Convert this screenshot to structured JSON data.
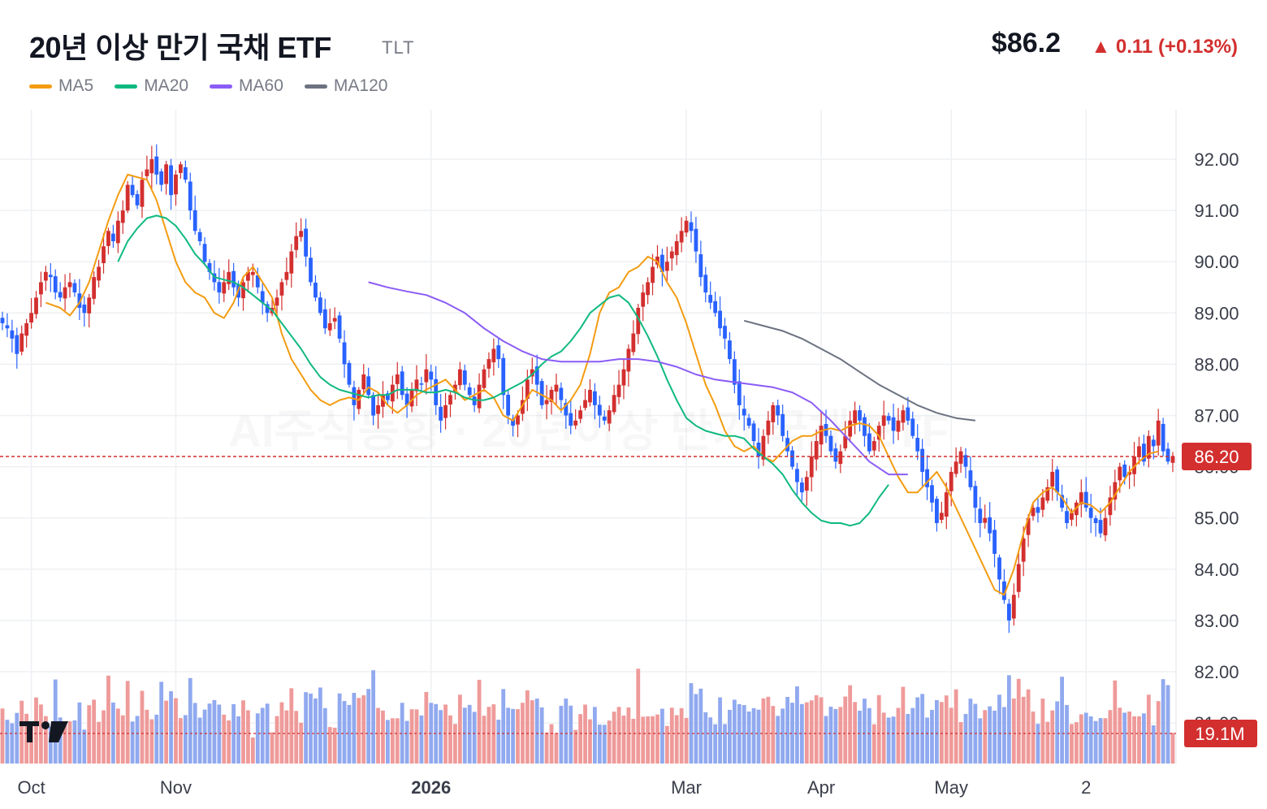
{
  "header": {
    "title": "20년 이상 만기 국채 ETF",
    "ticker": "TLT",
    "price": "$86.2",
    "change": "▲ 0.11 (+0.13%)"
  },
  "legend": [
    {
      "label": "MA5",
      "color": "#f39c12"
    },
    {
      "label": "MA20",
      "color": "#10b981"
    },
    {
      "label": "MA60",
      "color": "#8b5cf6"
    },
    {
      "label": "MA120",
      "color": "#6b7280"
    }
  ],
  "watermark": "AI주식동향 · 20년이상 만기 국채 ETF",
  "colors": {
    "up": "#d32f2f",
    "down": "#2962ff",
    "up_volume": "#ef9a9a",
    "down_volume": "#90a9ef",
    "price_tag": "#d32f2f"
  },
  "chart_data": {
    "type": "candlestick",
    "y_ticks": [
      "92.00",
      "91.00",
      "90.00",
      "89.00",
      "88.00",
      "87.00",
      "86.00",
      "85.00",
      "84.00",
      "83.00",
      "82.00",
      "81.00"
    ],
    "ylim": [
      80.5,
      93.0
    ],
    "x_ticks": [
      {
        "label": "Oct",
        "index": 6,
        "bold": false
      },
      {
        "label": "Nov",
        "index": 36,
        "bold": false
      },
      {
        "label": "2026",
        "index": 89,
        "bold": true
      },
      {
        "label": "Mar",
        "index": 142,
        "bold": false
      },
      {
        "label": "Apr",
        "index": 170,
        "bold": false
      },
      {
        "label": "May",
        "index": 197,
        "bold": false
      },
      {
        "label": "2",
        "index": 225,
        "bold": false
      }
    ],
    "last_price_label": "86.20",
    "last_price": 86.2,
    "last_volume_label": "19.1M",
    "last_volume": 19.1,
    "closes": [
      88.8,
      88.7,
      88.5,
      88.2,
      88.6,
      88.8,
      89.0,
      89.3,
      89.6,
      89.8,
      89.7,
      89.4,
      89.3,
      89.5,
      89.6,
      89.4,
      89.1,
      89.0,
      89.3,
      89.7,
      89.9,
      90.3,
      90.6,
      90.4,
      90.8,
      91.0,
      91.5,
      91.3,
      91.1,
      91.6,
      91.8,
      92.0,
      91.7,
      91.5,
      91.9,
      91.3,
      91.7,
      91.9,
      91.6,
      91.0,
      90.6,
      90.4,
      90.0,
      89.8,
      89.6,
      89.4,
      89.6,
      89.8,
      89.5,
      89.3,
      89.6,
      89.8,
      89.8,
      89.5,
      89.2,
      89.0,
      89.1,
      89.3,
      89.6,
      89.8,
      90.2,
      90.5,
      90.6,
      90.1,
      89.6,
      89.3,
      89.0,
      88.7,
      88.8,
      88.9,
      88.5,
      88.0,
      87.6,
      87.2,
      87.5,
      87.8,
      87.4,
      87.0,
      87.2,
      87.4,
      87.3,
      87.6,
      87.8,
      87.4,
      87.2,
      87.5,
      87.7,
      87.6,
      87.9,
      87.7,
      87.2,
      86.9,
      87.2,
      87.4,
      87.6,
      87.9,
      87.6,
      87.4,
      87.2,
      87.6,
      87.9,
      88.1,
      88.3,
      88.1,
      87.4,
      87.0,
      86.8,
      87.0,
      87.3,
      87.7,
      87.9,
      87.6,
      87.2,
      87.3,
      87.5,
      87.6,
      87.3,
      87.0,
      86.8,
      86.9,
      87.1,
      87.3,
      87.5,
      87.2,
      87.0,
      86.9,
      87.1,
      87.4,
      87.6,
      87.9,
      88.3,
      88.6,
      89.1,
      89.4,
      89.6,
      89.9,
      90.1,
      89.8,
      90.0,
      90.2,
      90.4,
      90.6,
      90.8,
      90.6,
      90.2,
      89.7,
      89.4,
      89.2,
      89.0,
      88.7,
      88.5,
      88.1,
      87.6,
      87.2,
      87.0,
      86.8,
      86.5,
      86.2,
      86.6,
      86.9,
      87.2,
      87.0,
      86.6,
      86.3,
      86.0,
      85.7,
      85.5,
      85.8,
      86.2,
      86.5,
      86.8,
      86.6,
      86.3,
      86.1,
      86.3,
      86.6,
      86.9,
      87.1,
      86.9,
      86.6,
      86.3,
      86.5,
      86.8,
      87.0,
      86.9,
      86.7,
      86.9,
      87.1,
      86.9,
      86.6,
      86.3,
      85.9,
      85.6,
      85.3,
      84.9,
      85.1,
      85.5,
      85.9,
      86.1,
      86.3,
      86.0,
      85.6,
      85.2,
      84.9,
      85.0,
      84.7,
      84.3,
      83.8,
      83.4,
      83.0,
      83.5,
      84.1,
      84.6,
      85.0,
      85.2,
      85.1,
      85.4,
      85.6,
      85.9,
      85.5,
      85.2,
      84.9,
      85.1,
      85.3,
      85.5,
      85.2,
      85.0,
      84.9,
      84.7,
      85.0,
      85.4,
      85.7,
      86.0,
      85.8,
      85.9,
      86.2,
      86.4,
      86.1,
      86.6,
      86.4,
      86.9,
      86.3,
      86.1,
      86.2
    ],
    "series": [
      {
        "name": "MA5",
        "color": "#f39c12",
        "values": [
          [
            9,
            89.2
          ],
          [
            12,
            89.1
          ],
          [
            14,
            88.95
          ],
          [
            16,
            89.2
          ],
          [
            18,
            89.6
          ],
          [
            20,
            90.2
          ],
          [
            22,
            90.8
          ],
          [
            24,
            91.3
          ],
          [
            26,
            91.7
          ],
          [
            28,
            91.65
          ],
          [
            30,
            91.6
          ],
          [
            32,
            91.2
          ],
          [
            34,
            90.6
          ],
          [
            36,
            90.0
          ],
          [
            38,
            89.6
          ],
          [
            40,
            89.4
          ],
          [
            42,
            89.3
          ],
          [
            44,
            89.0
          ],
          [
            46,
            88.9
          ],
          [
            48,
            89.2
          ],
          [
            50,
            89.7
          ],
          [
            52,
            89.9
          ],
          [
            54,
            89.6
          ],
          [
            56,
            89.3
          ],
          [
            58,
            88.6
          ],
          [
            60,
            88.1
          ],
          [
            62,
            87.8
          ],
          [
            64,
            87.5
          ],
          [
            66,
            87.3
          ],
          [
            68,
            87.2
          ],
          [
            70,
            87.3
          ],
          [
            72,
            87.35
          ],
          [
            74,
            87.3
          ],
          [
            76,
            87.55
          ],
          [
            78,
            87.45
          ],
          [
            80,
            87.2
          ],
          [
            82,
            87.05
          ],
          [
            84,
            87.2
          ],
          [
            86,
            87.4
          ],
          [
            88,
            87.5
          ],
          [
            90,
            87.6
          ],
          [
            92,
            87.7
          ],
          [
            94,
            87.5
          ],
          [
            96,
            87.3
          ],
          [
            98,
            87.4
          ],
          [
            100,
            87.5
          ],
          [
            102,
            87.35
          ],
          [
            104,
            87.0
          ],
          [
            106,
            86.9
          ],
          [
            108,
            87.2
          ],
          [
            110,
            87.5
          ],
          [
            112,
            87.4
          ],
          [
            114,
            87.3
          ],
          [
            116,
            87.1
          ],
          [
            118,
            87.3
          ],
          [
            120,
            87.6
          ],
          [
            122,
            88.2
          ],
          [
            124,
            89.0
          ],
          [
            126,
            89.4
          ],
          [
            128,
            89.5
          ],
          [
            130,
            89.8
          ],
          [
            132,
            89.9
          ],
          [
            134,
            90.1
          ],
          [
            136,
            90.0
          ],
          [
            138,
            89.6
          ],
          [
            140,
            89.3
          ],
          [
            142,
            88.8
          ],
          [
            144,
            88.2
          ],
          [
            146,
            87.6
          ],
          [
            148,
            87.2
          ],
          [
            150,
            86.7
          ],
          [
            152,
            86.4
          ],
          [
            154,
            86.3
          ],
          [
            156,
            86.4
          ],
          [
            158,
            86.2
          ],
          [
            160,
            86.1
          ],
          [
            162,
            86.3
          ],
          [
            164,
            86.5
          ],
          [
            166,
            86.6
          ],
          [
            168,
            86.6
          ],
          [
            170,
            86.7
          ],
          [
            172,
            86.75
          ],
          [
            174,
            86.7
          ],
          [
            176,
            86.8
          ],
          [
            178,
            86.85
          ],
          [
            180,
            86.8
          ],
          [
            182,
            86.6
          ],
          [
            184,
            86.2
          ],
          [
            186,
            85.8
          ],
          [
            188,
            85.5
          ],
          [
            190,
            85.5
          ],
          [
            192,
            85.7
          ],
          [
            194,
            85.9
          ],
          [
            196,
            85.6
          ],
          [
            198,
            85.2
          ],
          [
            200,
            84.8
          ],
          [
            202,
            84.4
          ],
          [
            204,
            84.0
          ],
          [
            206,
            83.6
          ],
          [
            208,
            83.5
          ],
          [
            210,
            84.0
          ],
          [
            212,
            84.7
          ],
          [
            214,
            85.3
          ],
          [
            216,
            85.5
          ],
          [
            218,
            85.6
          ],
          [
            220,
            85.4
          ],
          [
            222,
            85.1
          ],
          [
            224,
            85.3
          ],
          [
            226,
            85.25
          ],
          [
            228,
            85.1
          ],
          [
            230,
            85.3
          ],
          [
            232,
            85.6
          ],
          [
            234,
            85.9
          ],
          [
            236,
            86.1
          ],
          [
            238,
            86.25
          ],
          [
            240,
            86.3
          ]
        ]
      },
      {
        "name": "MA20",
        "color": "#10b981",
        "values": [
          [
            24,
            90.0
          ],
          [
            26,
            90.4
          ],
          [
            28,
            90.65
          ],
          [
            30,
            90.85
          ],
          [
            32,
            90.9
          ],
          [
            34,
            90.85
          ],
          [
            36,
            90.7
          ],
          [
            38,
            90.45
          ],
          [
            40,
            90.15
          ],
          [
            42,
            89.95
          ],
          [
            44,
            89.7
          ],
          [
            46,
            89.65
          ],
          [
            48,
            89.6
          ],
          [
            50,
            89.5
          ],
          [
            52,
            89.35
          ],
          [
            54,
            89.2
          ],
          [
            56,
            89.05
          ],
          [
            58,
            88.8
          ],
          [
            60,
            88.55
          ],
          [
            62,
            88.3
          ],
          [
            64,
            88.0
          ],
          [
            66,
            87.75
          ],
          [
            68,
            87.6
          ],
          [
            70,
            87.5
          ],
          [
            72,
            87.45
          ],
          [
            74,
            87.4
          ],
          [
            76,
            87.35
          ],
          [
            78,
            87.4
          ],
          [
            80,
            87.4
          ],
          [
            82,
            87.5
          ],
          [
            84,
            87.5
          ],
          [
            86,
            87.5
          ],
          [
            88,
            87.45
          ],
          [
            90,
            87.45
          ],
          [
            92,
            87.5
          ],
          [
            94,
            87.45
          ],
          [
            96,
            87.35
          ],
          [
            98,
            87.3
          ],
          [
            100,
            87.3
          ],
          [
            102,
            87.35
          ],
          [
            104,
            87.45
          ],
          [
            106,
            87.55
          ],
          [
            108,
            87.65
          ],
          [
            110,
            87.8
          ],
          [
            112,
            88.0
          ],
          [
            114,
            88.15
          ],
          [
            116,
            88.25
          ],
          [
            118,
            88.45
          ],
          [
            120,
            88.7
          ],
          [
            122,
            89.0
          ],
          [
            124,
            89.15
          ],
          [
            126,
            89.3
          ],
          [
            128,
            89.35
          ],
          [
            130,
            89.2
          ],
          [
            132,
            88.9
          ],
          [
            134,
            88.55
          ],
          [
            136,
            88.15
          ],
          [
            138,
            87.7
          ],
          [
            140,
            87.3
          ],
          [
            142,
            86.95
          ],
          [
            144,
            86.8
          ],
          [
            146,
            86.7
          ],
          [
            148,
            86.65
          ],
          [
            150,
            86.6
          ],
          [
            152,
            86.6
          ],
          [
            154,
            86.55
          ],
          [
            156,
            86.35
          ],
          [
            158,
            86.2
          ],
          [
            160,
            86.05
          ],
          [
            162,
            85.85
          ],
          [
            164,
            85.55
          ],
          [
            166,
            85.3
          ],
          [
            168,
            85.1
          ],
          [
            170,
            84.95
          ],
          [
            172,
            84.9
          ],
          [
            174,
            84.9
          ],
          [
            176,
            84.85
          ],
          [
            178,
            84.9
          ],
          [
            180,
            85.1
          ],
          [
            182,
            85.4
          ],
          [
            184,
            85.65
          ]
        ]
      },
      {
        "name": "MA60",
        "color": "#8b5cf6",
        "values": [
          [
            76,
            89.6
          ],
          [
            80,
            89.5
          ],
          [
            84,
            89.42
          ],
          [
            88,
            89.35
          ],
          [
            92,
            89.2
          ],
          [
            96,
            89.0
          ],
          [
            100,
            88.7
          ],
          [
            104,
            88.45
          ],
          [
            108,
            88.25
          ],
          [
            112,
            88.1
          ],
          [
            116,
            88.05
          ],
          [
            120,
            88.05
          ],
          [
            124,
            88.05
          ],
          [
            128,
            88.1
          ],
          [
            132,
            88.1
          ],
          [
            136,
            88.05
          ],
          [
            140,
            87.95
          ],
          [
            144,
            87.8
          ],
          [
            148,
            87.7
          ],
          [
            152,
            87.65
          ],
          [
            156,
            87.6
          ],
          [
            160,
            87.55
          ],
          [
            164,
            87.45
          ],
          [
            168,
            87.25
          ],
          [
            172,
            86.9
          ],
          [
            176,
            86.5
          ],
          [
            180,
            86.1
          ],
          [
            184,
            85.85
          ],
          [
            188,
            85.85
          ]
        ]
      },
      {
        "name": "MA120",
        "color": "#6b7280",
        "values": [
          [
            154,
            88.85
          ],
          [
            158,
            88.75
          ],
          [
            162,
            88.65
          ],
          [
            166,
            88.5
          ],
          [
            170,
            88.3
          ],
          [
            174,
            88.1
          ],
          [
            178,
            87.85
          ],
          [
            182,
            87.6
          ],
          [
            186,
            87.4
          ],
          [
            190,
            87.2
          ],
          [
            194,
            87.05
          ],
          [
            198,
            86.95
          ],
          [
            202,
            86.9
          ]
        ]
      }
    ]
  }
}
